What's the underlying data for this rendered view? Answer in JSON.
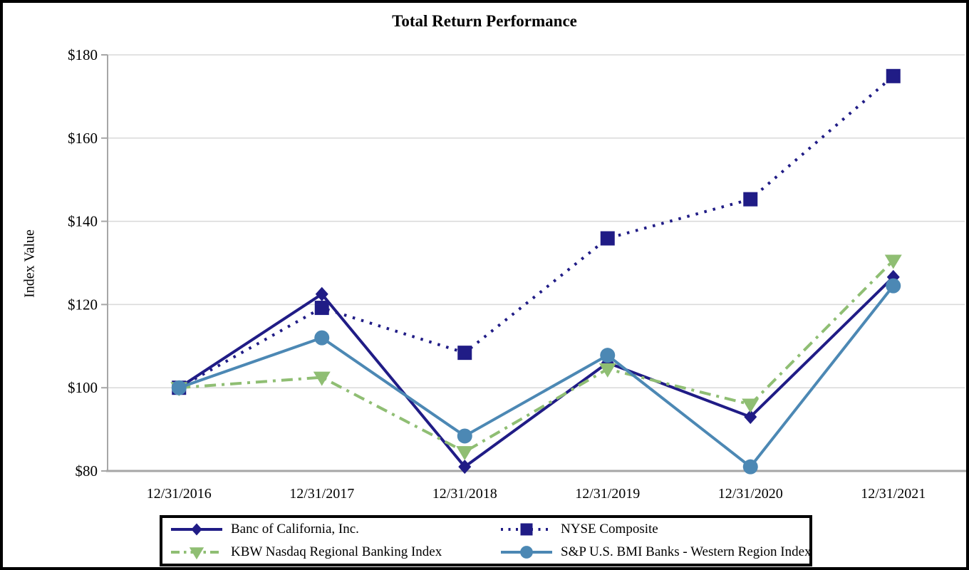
{
  "page": {
    "title": "Total Return Performance"
  },
  "chart_data": {
    "type": "line",
    "title": "Total Return Performance",
    "xlabel": "",
    "ylabel": "Index Value",
    "ylim": [
      80,
      180
    ],
    "grid": "horizontal-only",
    "legend_position": "bottom-boxed-two-columns",
    "yticks": [
      {
        "value": 180,
        "label": "$180"
      },
      {
        "value": 160,
        "label": "$160"
      },
      {
        "value": 140,
        "label": "$140"
      },
      {
        "value": 120,
        "label": "$120"
      },
      {
        "value": 100,
        "label": "$100"
      },
      {
        "value": 80,
        "label": "$80"
      }
    ],
    "categories": [
      "12/31/2016",
      "12/31/2017",
      "12/31/2018",
      "12/31/2019",
      "12/31/2020",
      "12/31/2021"
    ],
    "series": [
      {
        "name": "Banc of California, Inc.",
        "color": "#201C86",
        "line_style": "solid",
        "marker": "diamond",
        "values": [
          100.0,
          122.5,
          81.0,
          106.0,
          93.0,
          126.6
        ]
      },
      {
        "name": "NYSE Composite",
        "color": "#201C86",
        "line_style": "dotted",
        "marker": "square",
        "values": [
          100.0,
          119.2,
          108.4,
          135.9,
          145.3,
          174.9
        ]
      },
      {
        "name": "KBW Nasdaq Regional Banking Index",
        "color": "#8FBE73",
        "line_style": "dashdot",
        "marker": "triangle-down",
        "values": [
          100.0,
          102.5,
          84.6,
          104.5,
          96.0,
          130.6
        ]
      },
      {
        "name": "S&P U.S. BMI Banks - Western Region Index",
        "color": "#4C88B4",
        "line_style": "solid",
        "marker": "circle",
        "values": [
          100.0,
          112.0,
          88.4,
          107.8,
          81.0,
          124.5
        ]
      }
    ],
    "colors": {
      "gridline": "#D9D9D9",
      "axis": "#A6A6A6",
      "text": "#000000",
      "border": "#000000"
    }
  }
}
